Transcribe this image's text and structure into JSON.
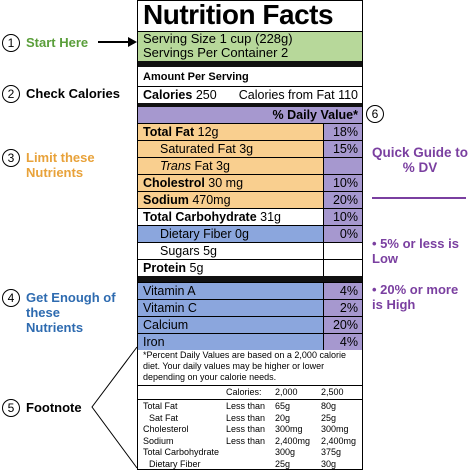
{
  "label": {
    "title": "Nutrition Facts",
    "serving_size": "Serving Size 1 cup (228g)",
    "servings_per_container": "Servings Per Container 2",
    "amount_per_serving": "Amount Per Serving",
    "calories_label": "Calories",
    "calories_value": "250",
    "calories_from_fat": "Calories from Fat 110",
    "daily_value_header": "% Daily Value*",
    "nutrients": [
      {
        "name": "Total Fat",
        "amount": "12g",
        "dv": "18%"
      },
      {
        "name": "Saturated Fat",
        "amount": "3g",
        "dv": "15%"
      },
      {
        "name": "Trans",
        "amount": "Fat 3g"
      },
      {
        "name": "Cholestrol",
        "amount": "30 mg",
        "dv": "10%"
      },
      {
        "name": "Sodium",
        "amount": "470mg",
        "dv": "20%"
      },
      {
        "name": "Total Carbohydrate",
        "amount": "31g",
        "dv": "10%"
      },
      {
        "name": "Dietary Fiber",
        "amount": "0g",
        "dv": "0%"
      },
      {
        "name": "Sugars",
        "amount": "5g"
      },
      {
        "name": "Protein",
        "amount": "5g"
      }
    ],
    "vitamins": [
      {
        "name": "Vitamin A",
        "dv": "4%"
      },
      {
        "name": "Vitamin C",
        "dv": "2%"
      },
      {
        "name": "Calcium",
        "dv": "20%"
      },
      {
        "name": "Iron",
        "dv": "4%"
      }
    ],
    "footnote": "*Percent Daily Values are based on a 2,000 calorie diet. Your daily values may be higher or lower depending on your calorie needs.",
    "footnote_table": {
      "header": {
        "label": "Calories:",
        "columns": [
          "2,000",
          "2,500"
        ]
      },
      "rows": [
        [
          "Total Fat",
          "Less than",
          "65g",
          "80g"
        ],
        [
          "Sat Fat",
          "Less than",
          "20g",
          "25g"
        ],
        [
          "Cholesterol",
          "Less than",
          "300mg",
          "300mg"
        ],
        [
          "Sodium",
          "Less than",
          "2,400mg",
          "2,400mg"
        ],
        [
          "Total Carbohydrate",
          "300g",
          "375g"
        ],
        [
          "Dietary Fiber",
          "25g",
          "30g"
        ]
      ]
    }
  },
  "annotations": [
    {
      "number": "1",
      "text": "Start Here"
    },
    {
      "number": "2",
      "text": "Check Calories"
    },
    {
      "number": "3",
      "text": "Limit these Nutrients"
    },
    {
      "number": "4",
      "text": "Get Enough of these Nutrients"
    },
    {
      "number": "5",
      "text": "Footnote"
    },
    {
      "number": "6"
    }
  ],
  "guide": {
    "title": "Quick Guide to % DV",
    "items": [
      "• 5% or less is Low",
      "• 20% or more is High"
    ]
  }
}
